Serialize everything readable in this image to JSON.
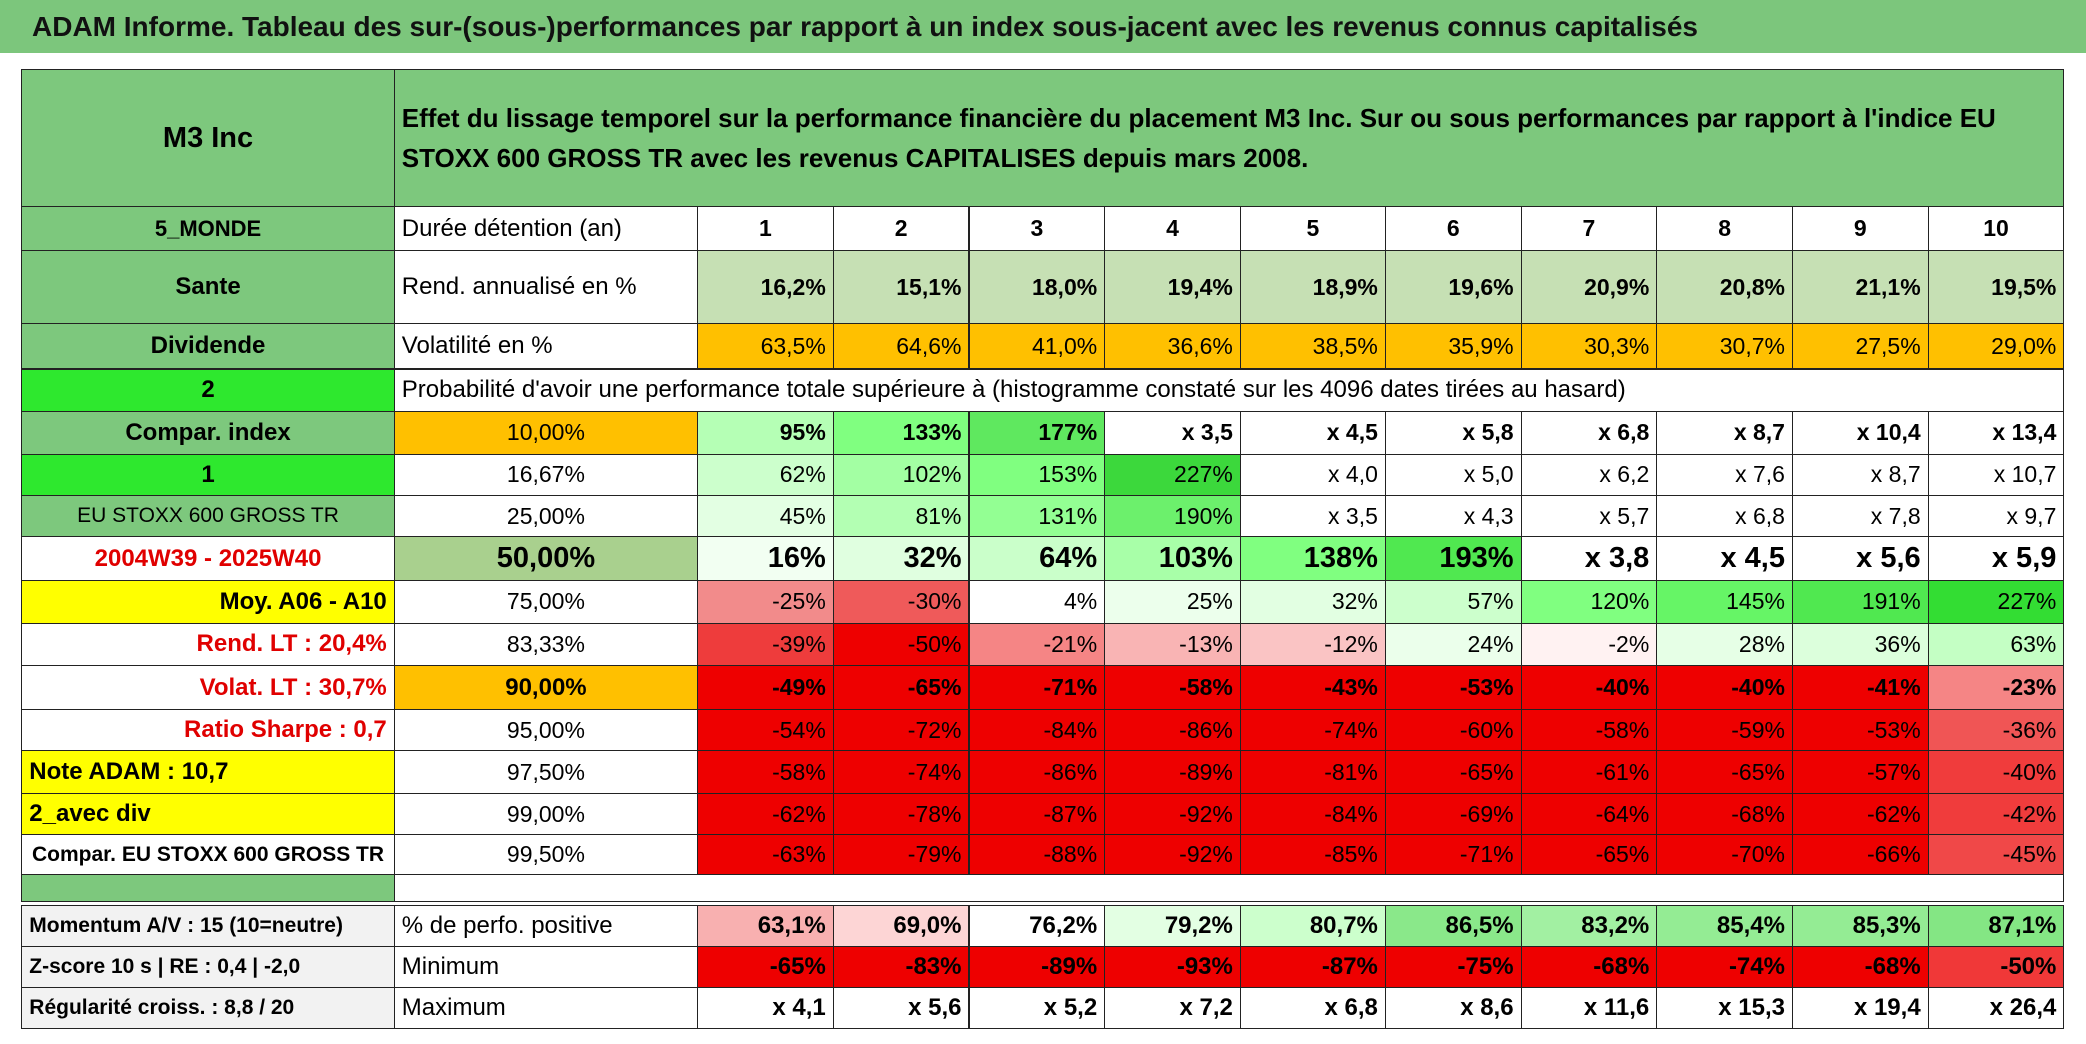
{
  "title": "ADAM Informe. Tableau des sur-(sous-)performances par rapport à un index sous-jacent avec les revenus connus capitalisés",
  "header": {
    "fund": "M3 Inc",
    "description": "Effet du lissage temporel sur la performance financière du placement M3 Inc. Sur ou sous performances par rapport à l'indice EU STOXX 600 GROSS TR avec les revenus CAPITALISES depuis mars 2008."
  },
  "rows": [
    [
      "5_MONDE",
      "Durée détention (an)",
      "1",
      "2",
      "3",
      "4",
      "5",
      "6",
      "7",
      "8",
      "9",
      "10"
    ],
    [
      "Sante",
      "Rend. annualisé en %",
      "16,2%",
      "15,1%",
      "18,0%",
      "19,4%",
      "18,9%",
      "19,6%",
      "20,9%",
      "20,8%",
      "21,1%",
      "19,5%"
    ],
    [
      "Dividende",
      "Volatilité en %",
      "63,5%",
      "64,6%",
      "41,0%",
      "36,6%",
      "38,5%",
      "35,9%",
      "30,3%",
      "30,7%",
      "27,5%",
      "29,0%"
    ],
    [
      "2",
      "Probabilité d'avoir une performance totale supérieure à (histogramme constaté sur les 4096 dates tirées au hasard)"
    ],
    [
      "Compar. index",
      "10,00%",
      "95%",
      "133%",
      "177%",
      "x 3,5",
      "x 4,5",
      "x 5,8",
      "x 6,8",
      "x 8,7",
      "x 10,4",
      "x 13,4"
    ],
    [
      "1",
      "16,67%",
      "62%",
      "102%",
      "153%",
      "227%",
      "x 4,0",
      "x 5,0",
      "x 6,2",
      "x 7,6",
      "x 8,7",
      "x 10,7"
    ],
    [
      "EU STOXX 600 GROSS TR",
      "25,00%",
      "45%",
      "81%",
      "131%",
      "190%",
      "x 3,5",
      "x 4,3",
      "x 5,7",
      "x 6,8",
      "x 7,8",
      "x 9,7"
    ],
    [
      "2004W39 - 2025W40",
      "50,00%",
      "16%",
      "32%",
      "64%",
      "103%",
      "138%",
      "193%",
      "x 3,8",
      "x 4,5",
      "x 5,6",
      "x 5,9"
    ],
    [
      "Moy. A06 - A10",
      "75,00%",
      "-25%",
      "-30%",
      "4%",
      "25%",
      "32%",
      "57%",
      "120%",
      "145%",
      "191%",
      "227%"
    ],
    [
      "Rend. LT :    20,4%",
      "83,33%",
      "-39%",
      "-50%",
      "-21%",
      "-13%",
      "-12%",
      "24%",
      "-2%",
      "28%",
      "36%",
      "63%"
    ],
    [
      "Volat. LT :    30,7%",
      "90,00%",
      "-49%",
      "-65%",
      "-71%",
      "-58%",
      "-43%",
      "-53%",
      "-40%",
      "-40%",
      "-41%",
      "-23%"
    ],
    [
      "Ratio Sharpe :    0,7",
      "95,00%",
      "-54%",
      "-72%",
      "-84%",
      "-86%",
      "-74%",
      "-60%",
      "-58%",
      "-59%",
      "-53%",
      "-36%"
    ],
    [
      "Note ADAM : 10,7",
      "97,50%",
      "-58%",
      "-74%",
      "-86%",
      "-89%",
      "-81%",
      "-65%",
      "-61%",
      "-65%",
      "-57%",
      "-40%"
    ],
    [
      "2_avec div",
      "99,00%",
      "-62%",
      "-78%",
      "-87%",
      "-92%",
      "-84%",
      "-69%",
      "-64%",
      "-68%",
      "-62%",
      "-42%"
    ],
    [
      "Compar. EU STOXX 600 GROSS TR",
      "99,50%",
      "-63%",
      "-79%",
      "-88%",
      "-92%",
      "-85%",
      "-71%",
      "-65%",
      "-70%",
      "-66%",
      "-45%"
    ]
  ],
  "summary": [
    [
      "Momentum A/V : 15 (10=neutre)",
      "% de perfo. positive",
      "63,1%",
      "69,0%",
      "76,2%",
      "79,2%",
      "80,7%",
      "86,5%",
      "83,2%",
      "85,4%",
      "85,3%",
      "87,1%"
    ],
    [
      "Z-score 10 s | RE : 0,4 | -2,0",
      "Minimum",
      "-65%",
      "-83%",
      "-89%",
      "-93%",
      "-87%",
      "-75%",
      "-68%",
      "-74%",
      "-68%",
      "-50%"
    ],
    [
      "Régularité croiss. : 8,8 / 20",
      "Maximum",
      "x 4,1",
      "x 5,6",
      "x 5,2",
      "x 7,2",
      "x 6,8",
      "x 8,6",
      "x 11,6",
      "x 15,3",
      "x 19,4",
      "x 26,4"
    ]
  ]
}
